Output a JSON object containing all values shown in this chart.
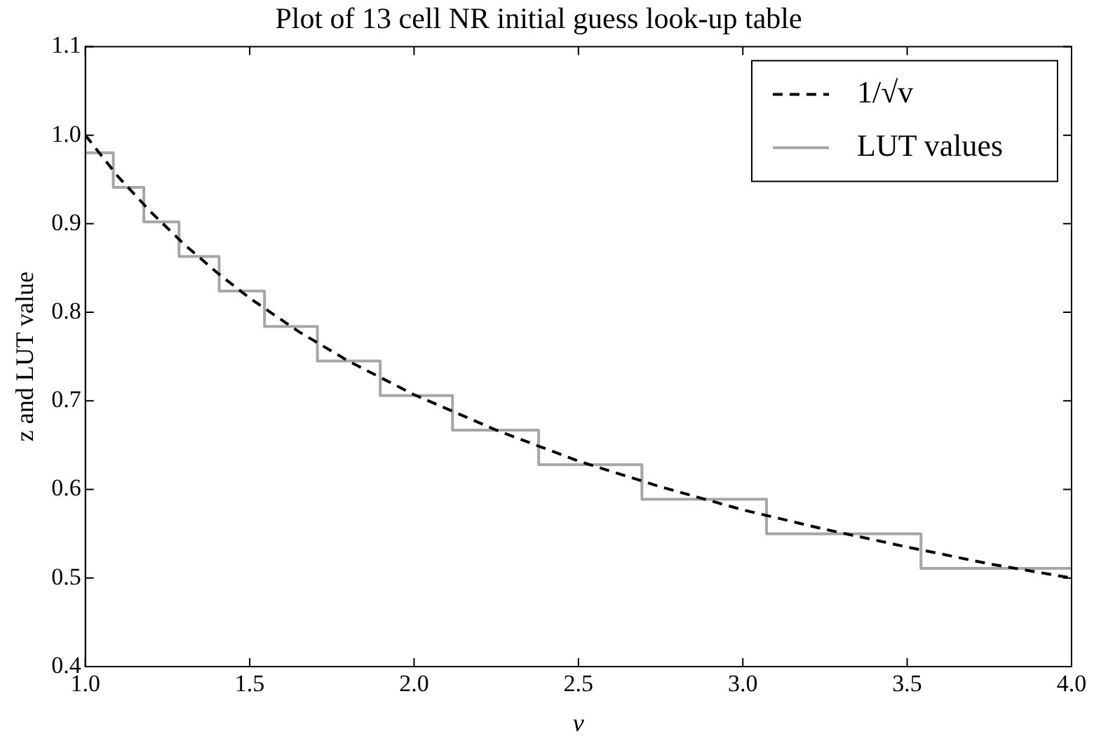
{
  "chart_data": {
    "type": "line",
    "title": "Plot of 13 cell NR initial guess look-up table",
    "xlabel": "v",
    "ylabel": "z and LUT value",
    "xlim": [
      1.0,
      4.0
    ],
    "ylim": [
      0.4,
      1.1
    ],
    "xticks": [
      {
        "value": 1,
        "label": "1.0"
      },
      1.5,
      {
        "value": 2,
        "label": "2.0"
      },
      2.5,
      {
        "value": 3,
        "label": "3.0"
      },
      3.5,
      {
        "value": 4,
        "label": "4.0"
      }
    ],
    "yticks": [
      0.4,
      0.5,
      0.6,
      0.7,
      0.8,
      0.9,
      {
        "value": 1,
        "label": "1.0"
      },
      1.1
    ],
    "grid": false,
    "legend": "top right",
    "series": [
      {
        "name": "1/√v",
        "type": "line",
        "line_style": "dashed",
        "color": "#000000",
        "x": [
          1.0,
          1.1,
          1.2,
          1.3,
          1.4,
          1.5,
          1.65,
          1.8,
          2.0,
          2.25,
          2.5,
          2.75,
          3.0,
          3.25,
          3.5,
          3.75,
          4.0
        ],
        "values": [
          1.0,
          0.953,
          0.913,
          0.877,
          0.845,
          0.816,
          0.778,
          0.745,
          0.707,
          0.667,
          0.632,
          0.603,
          0.577,
          0.555,
          0.535,
          0.516,
          0.5
        ]
      },
      {
        "name": "LUT values",
        "type": "step",
        "line_style": "solid",
        "color": "#a6a6a6",
        "x": [
          1.0,
          1.085,
          1.178,
          1.285,
          1.407,
          1.545,
          1.706,
          1.897,
          2.117,
          2.379,
          2.693,
          3.072,
          3.542,
          4.0
        ],
        "values": [
          0.98,
          0.941,
          0.902,
          0.863,
          0.824,
          0.784,
          0.745,
          0.706,
          0.667,
          0.628,
          0.589,
          0.55,
          0.511,
          0.511
        ]
      }
    ]
  }
}
